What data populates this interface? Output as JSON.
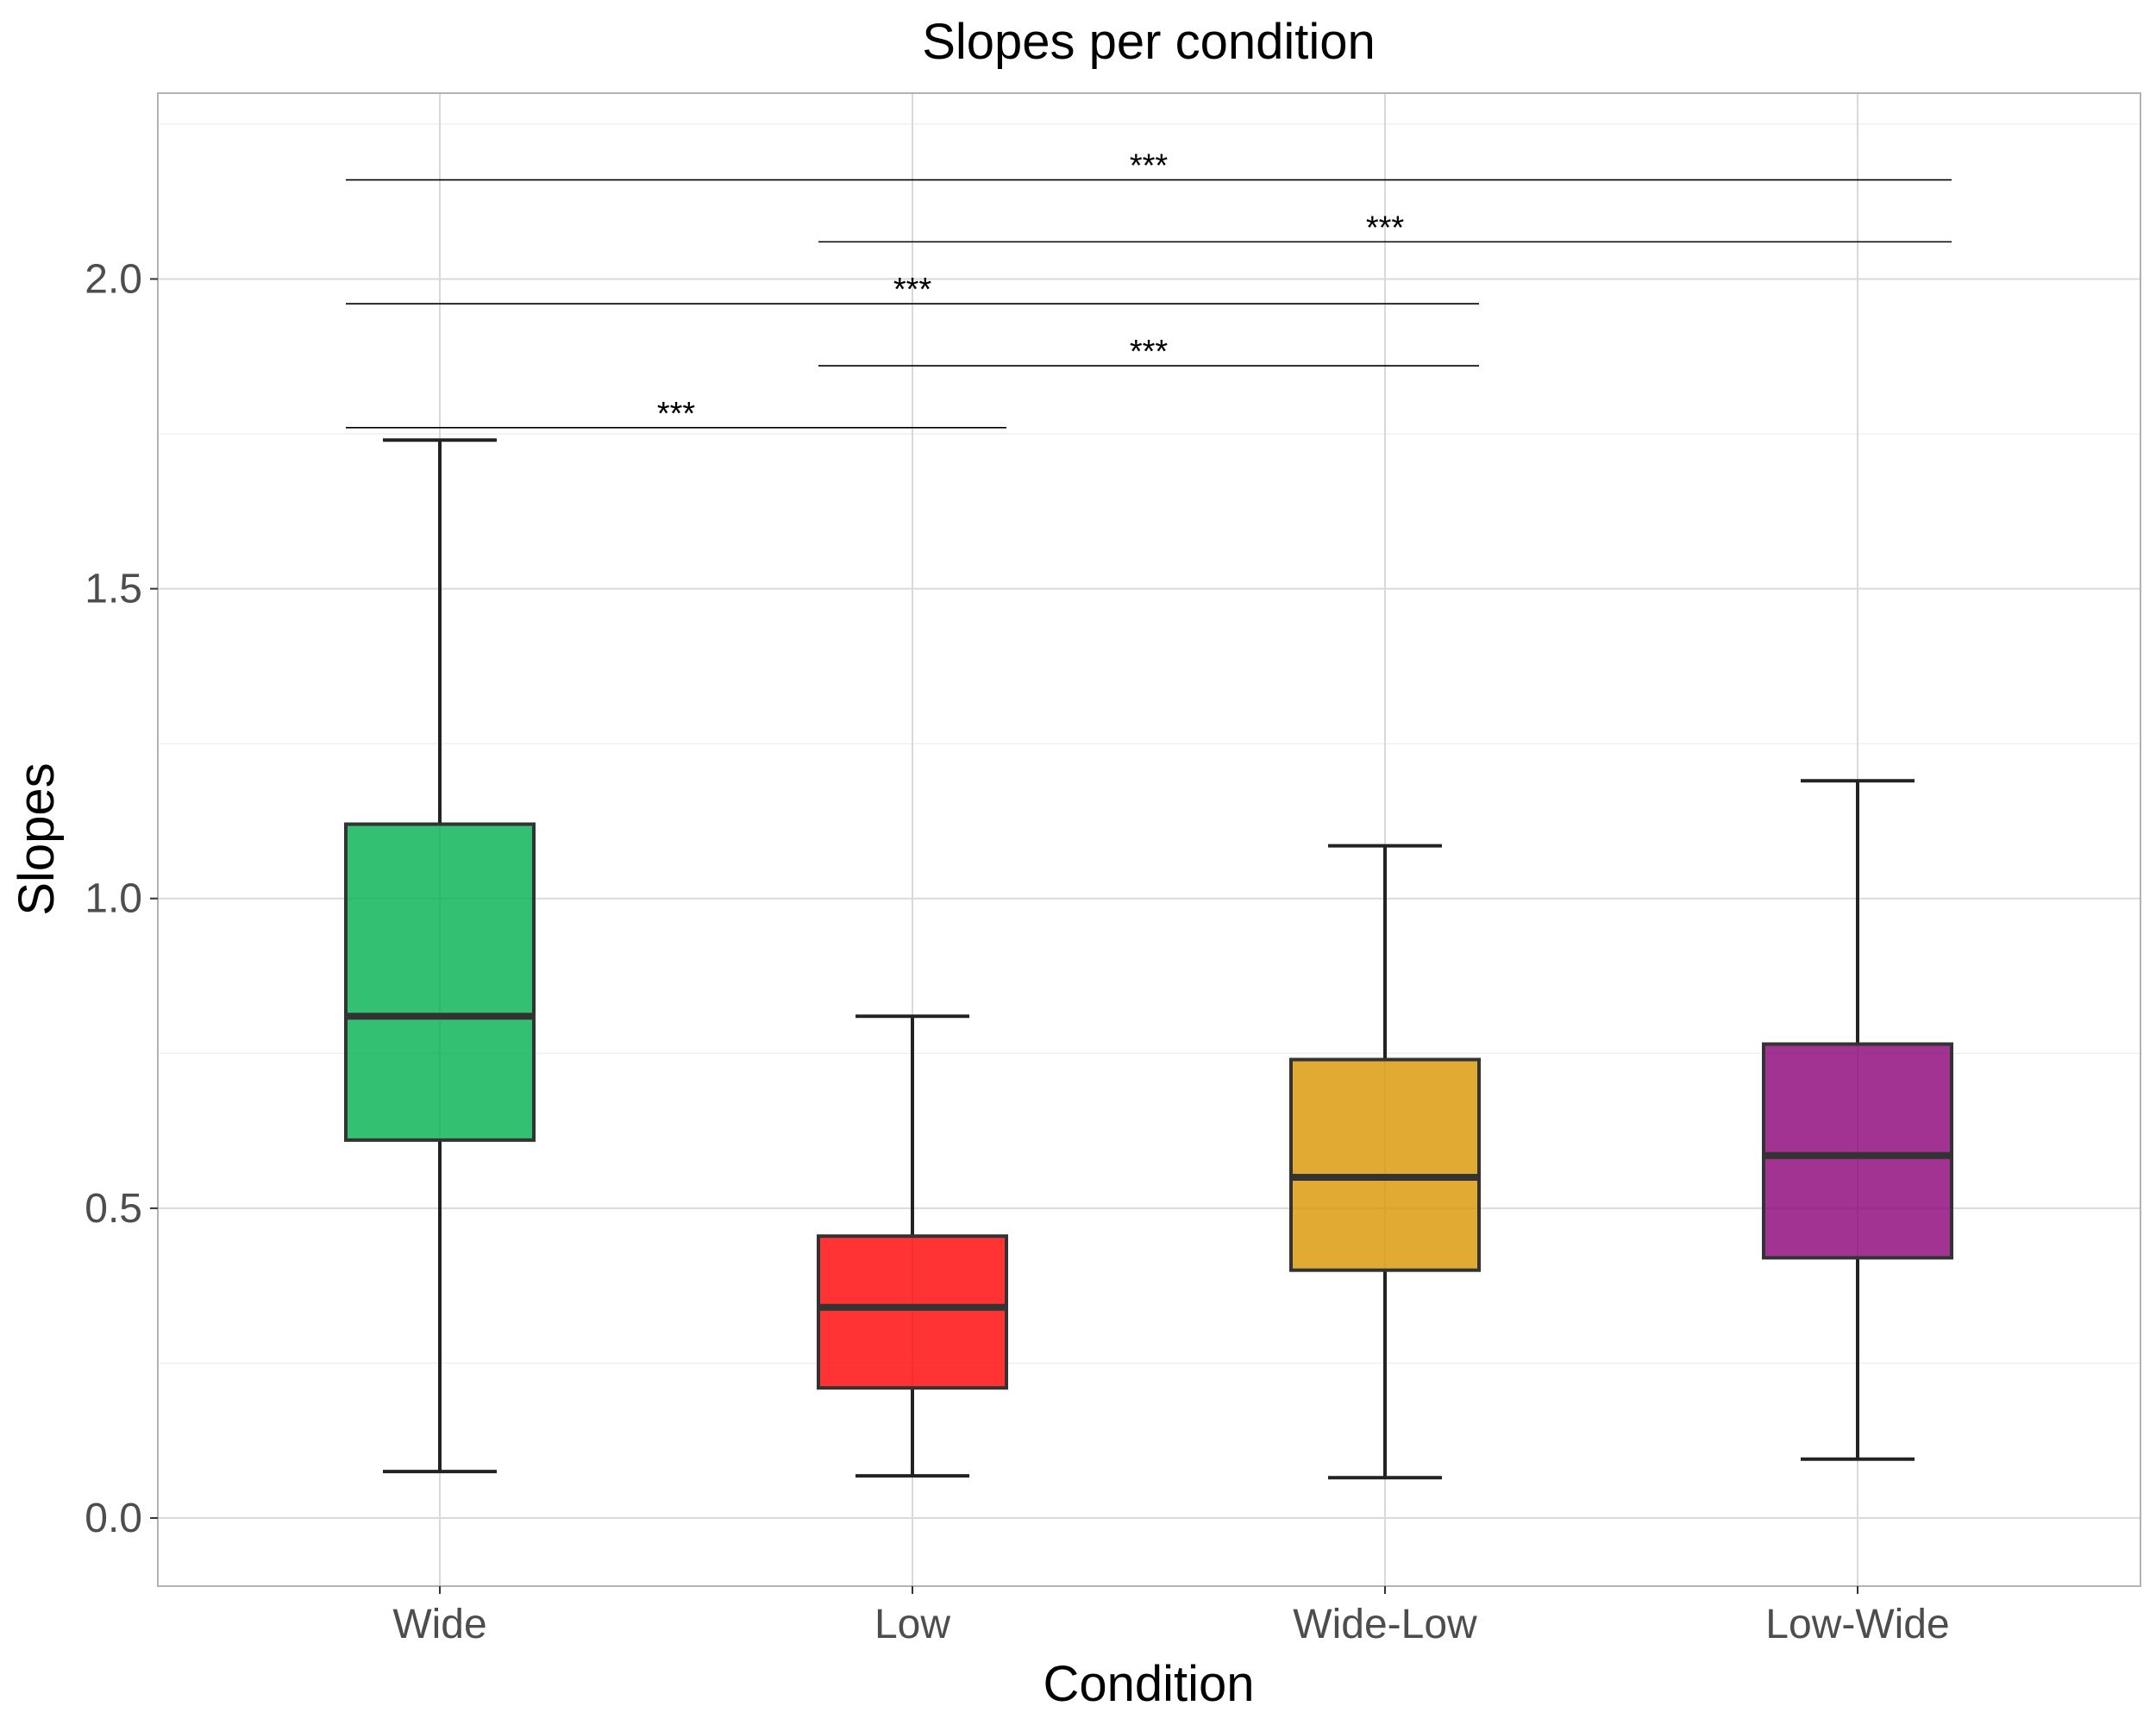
{
  "chart_data": {
    "type": "boxplot",
    "title": "Slopes per condition",
    "xlabel": "Condition",
    "ylabel": "Slopes",
    "ylim": [
      -0.11,
      2.3
    ],
    "yticks": [
      0.0,
      0.5,
      1.0,
      1.5,
      2.0
    ],
    "ytick_labels": [
      "0.0",
      "0.5",
      "1.0",
      "1.5",
      "2.0"
    ],
    "grid": true,
    "categories": [
      "Wide",
      "Low",
      "Wide-Low",
      "Low-Wide"
    ],
    "boxes": [
      {
        "category": "Wide",
        "whisker_low": 0.075,
        "q1": 0.61,
        "median": 0.81,
        "q3": 1.12,
        "whisker_high": 1.74,
        "color": "#00b050"
      },
      {
        "category": "Low",
        "whisker_low": 0.068,
        "q1": 0.21,
        "median": 0.34,
        "q3": 0.455,
        "whisker_high": 0.81,
        "color": "#ff0000"
      },
      {
        "category": "Wide-Low",
        "whisker_low": 0.065,
        "q1": 0.4,
        "median": 0.55,
        "q3": 0.74,
        "whisker_high": 1.085,
        "color": "#da9500"
      },
      {
        "category": "Low-Wide",
        "whisker_low": 0.095,
        "q1": 0.42,
        "median": 0.585,
        "q3": 0.765,
        "whisker_high": 1.19,
        "color": "#8b0077"
      }
    ],
    "significance": [
      {
        "from": "Wide",
        "to": "Low",
        "y": 1.76,
        "label": "***"
      },
      {
        "from": "Low",
        "to": "Wide-Low",
        "y": 1.86,
        "label": "***"
      },
      {
        "from": "Wide",
        "to": "Wide-Low",
        "y": 1.96,
        "label": "***"
      },
      {
        "from": "Low",
        "to": "Low-Wide",
        "y": 2.06,
        "label": "***"
      },
      {
        "from": "Wide",
        "to": "Low-Wide",
        "y": 2.16,
        "label": "***"
      }
    ]
  }
}
